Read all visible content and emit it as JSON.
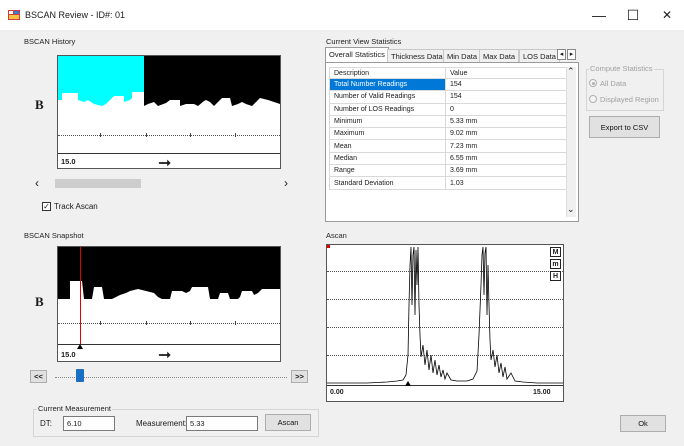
{
  "window": {
    "title": "BSCAN Review - ID#: 01",
    "minimize": "—",
    "maximize": "☐",
    "close": "✕"
  },
  "history": {
    "group_label": "BSCAN History",
    "b_label": "B",
    "depth_label": "15.0",
    "arrow": "➞",
    "scroll_left": "‹",
    "scroll_right": "›",
    "track_label": "Track Ascan",
    "track_checked": true
  },
  "snapshot": {
    "group_label": "BSCAN Snapshot",
    "b_label": "B",
    "depth_label": "15.0",
    "arrow": "➞",
    "prev_button": "<<",
    "next_button": ">>",
    "slider_position": 0.18
  },
  "measurement": {
    "group_label": "Current Measurement",
    "dt_label": "DT:",
    "dt_value": "6.10",
    "measurement_label": "Measurement:",
    "measurement_value": "5.33",
    "ascan_button": "Ascan"
  },
  "stats": {
    "group_label": "Current View Statistics",
    "tabs": [
      "Overall Statistics",
      "Thickness Data",
      "Min Data",
      "Max Data",
      "LOS Data"
    ],
    "active_tab": 0,
    "tab_scroll_left": "◂",
    "tab_scroll_right": "▸",
    "columns": [
      "Description",
      "Value"
    ],
    "rows": [
      {
        "description": "Total Number Readings",
        "value": "154"
      },
      {
        "description": "Number of Valid Readings",
        "value": "154"
      },
      {
        "description": "Number of LOS Readings",
        "value": "0"
      },
      {
        "description": "Minimum",
        "value": "5.33 mm"
      },
      {
        "description": "Maximum",
        "value": "9.02 mm"
      },
      {
        "description": "Mean",
        "value": "7.23 mm"
      },
      {
        "description": "Median",
        "value": "6.55 mm"
      },
      {
        "description": "Range",
        "value": "3.69 mm"
      },
      {
        "description": "Standard Deviation",
        "value": "1.03"
      }
    ],
    "scroll_up": "⌃",
    "scroll_down": "⌄"
  },
  "compute": {
    "group_label": "Compute Statistics",
    "option_all": "All Data",
    "option_displayed": "Displayed Region",
    "selected": "All Data",
    "export_button": "Export to CSV"
  },
  "ascan": {
    "group_label": "Ascan",
    "x_start": "0.00",
    "x_end": "15.00",
    "mode_m": "M",
    "mode_m_small": "m",
    "mode_h": "H"
  },
  "ok_button": "Ok",
  "colors": {
    "history_highlight": "#00ffff",
    "snapshot_cursor": "#e00000",
    "selection": "#0078d7",
    "slider_thumb": "#1a6fc4"
  }
}
